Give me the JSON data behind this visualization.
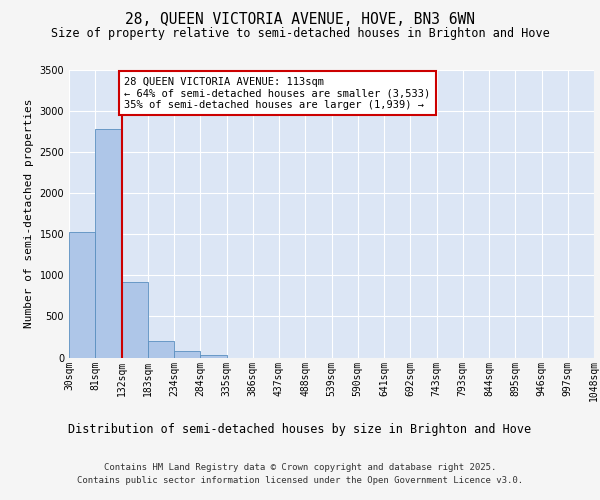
{
  "title1": "28, QUEEN VICTORIA AVENUE, HOVE, BN3 6WN",
  "title2": "Size of property relative to semi-detached houses in Brighton and Hove",
  "xlabel": "Distribution of semi-detached houses by size in Brighton and Hove",
  "ylabel": "Number of semi-detached properties",
  "bin_labels": [
    "30sqm",
    "81sqm",
    "132sqm",
    "183sqm",
    "234sqm",
    "284sqm",
    "335sqm",
    "386sqm",
    "437sqm",
    "488sqm",
    "539sqm",
    "590sqm",
    "641sqm",
    "692sqm",
    "743sqm",
    "793sqm",
    "844sqm",
    "895sqm",
    "946sqm",
    "997sqm",
    "1048sqm"
  ],
  "bar_values": [
    1527,
    2780,
    920,
    205,
    80,
    30,
    0,
    0,
    0,
    0,
    0,
    0,
    0,
    0,
    0,
    0,
    0,
    0,
    0,
    0
  ],
  "bar_color": "#aec6e8",
  "bar_edge_color": "#5a8fc0",
  "bg_color": "#dce6f5",
  "fig_bg_color": "#f5f5f5",
  "grid_color": "#ffffff",
  "vline_color": "#cc0000",
  "annotation_text": "28 QUEEN VICTORIA AVENUE: 113sqm\n← 64% of semi-detached houses are smaller (3,533)\n35% of semi-detached houses are larger (1,939) →",
  "annotation_box_color": "#ffffff",
  "annotation_box_edge": "#cc0000",
  "ylim": [
    0,
    3500
  ],
  "yticks": [
    0,
    500,
    1000,
    1500,
    2000,
    2500,
    3000,
    3500
  ],
  "footer1": "Contains HM Land Registry data © Crown copyright and database right 2025.",
  "footer2": "Contains public sector information licensed under the Open Government Licence v3.0.",
  "title1_fontsize": 10.5,
  "title2_fontsize": 8.5,
  "xlabel_fontsize": 8.5,
  "ylabel_fontsize": 8,
  "tick_fontsize": 7,
  "annotation_fontsize": 7.5,
  "footer_fontsize": 6.5
}
